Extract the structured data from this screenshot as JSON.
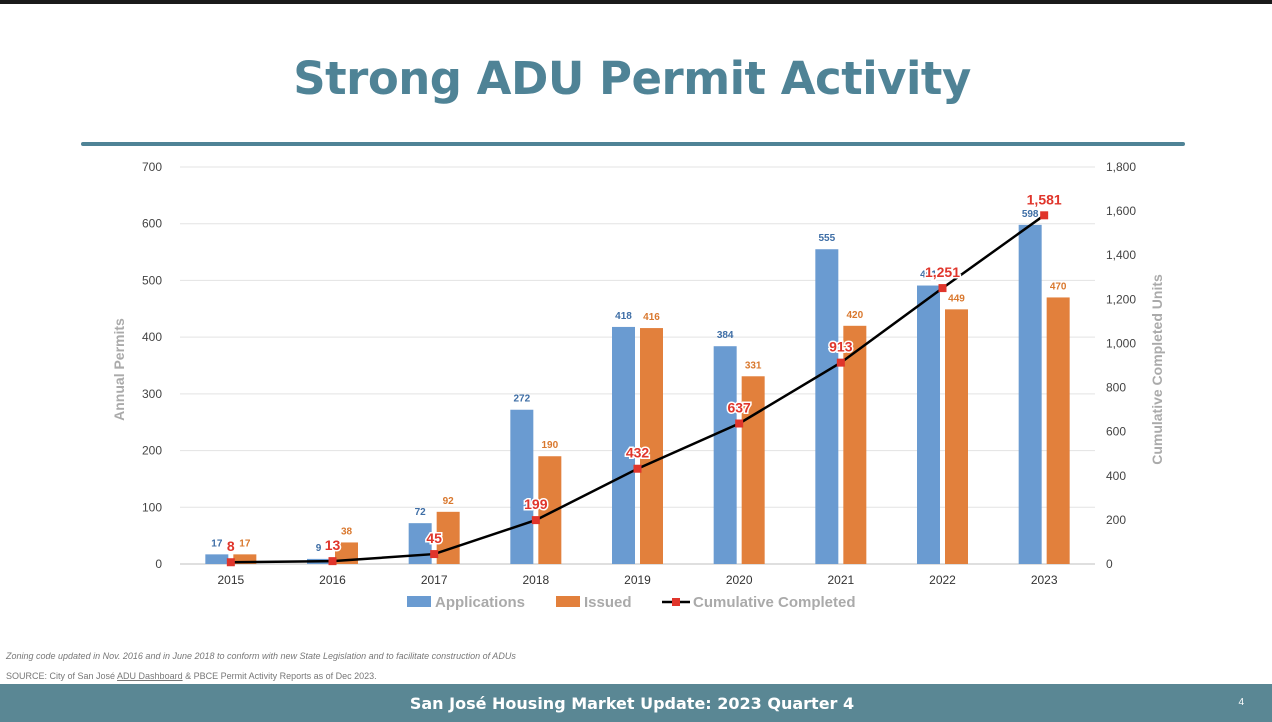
{
  "slide": {
    "title": "Strong ADU Permit Activity",
    "footnote": "Zoning code updated in Nov. 2016 and in June 2018 to conform with new State Legislation and to facilitate construction of ADUs",
    "source_prefix": "SOURCE: City of San José ",
    "source_link": "ADU Dashboard",
    "source_suffix": " & PBCE Permit Activity Reports as of Dec 2023.",
    "footer_title": "San José Housing Market Update: 2023 Quarter 4",
    "page_number": "4"
  },
  "chart_data": {
    "type": "bar",
    "categories": [
      "2015",
      "2016",
      "2017",
      "2018",
      "2019",
      "2020",
      "2021",
      "2022",
      "2023"
    ],
    "series": [
      {
        "name": "Applications",
        "kind": "bar",
        "axis": "left",
        "color": "#6a9bd1",
        "label_color": "#3e6ea6",
        "values": [
          17,
          9,
          72,
          272,
          418,
          384,
          555,
          491,
          598
        ],
        "labels": [
          "17",
          "9",
          "72",
          "272",
          "418",
          "384",
          "555",
          "491",
          "598"
        ]
      },
      {
        "name": "Issued",
        "kind": "bar",
        "axis": "left",
        "color": "#e2803c",
        "label_color": "#d9782e",
        "values": [
          17,
          38,
          92,
          190,
          416,
          331,
          420,
          449,
          470
        ],
        "labels": [
          "17",
          "38",
          "92",
          "190",
          "416",
          "331",
          "420",
          "449",
          "470"
        ]
      },
      {
        "name": "Cumulative Completed",
        "kind": "line",
        "axis": "right",
        "color": "#000000",
        "marker_color": "#e0352b",
        "label_color": "#e0352b",
        "values": [
          8,
          13,
          45,
          199,
          432,
          637,
          913,
          1251,
          1581
        ],
        "labels": [
          "8",
          "13",
          "45",
          "199",
          "432",
          "637",
          "913",
          "1,251",
          "1,581"
        ]
      }
    ],
    "y_left": {
      "label": "Annual Permits",
      "min": 0,
      "max": 700,
      "ticks": [
        0,
        100,
        200,
        300,
        400,
        500,
        600,
        700
      ],
      "tick_labels": [
        "0",
        "100",
        "200",
        "300",
        "400",
        "500",
        "600",
        "700"
      ]
    },
    "y_right": {
      "label": "Cumulative Completed Units",
      "min": 0,
      "max": 1800,
      "ticks": [
        0,
        200,
        400,
        600,
        800,
        1000,
        1200,
        1400,
        1600,
        1800
      ],
      "tick_labels": [
        "0",
        "200",
        "400",
        "600",
        "800",
        "1,000",
        "1,200",
        "1,400",
        "1,600",
        "1,800"
      ]
    },
    "grid": true,
    "legend_position": "bottom"
  }
}
